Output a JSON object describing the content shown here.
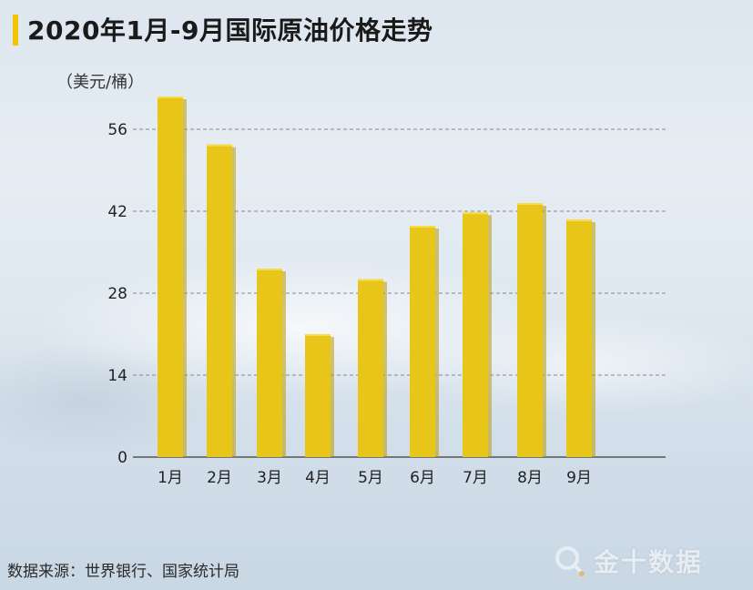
{
  "title": "2020年1月-9月国际原油价格走势",
  "unit_label": "（美元/桶）",
  "source": "数据来源：世界银行、国家统计局",
  "watermark": "金十数据",
  "colors": {
    "bar": "#e8c619",
    "bar_side": "#b89a06",
    "accent": "#f2c500",
    "grid": "#7f8a94",
    "axis": "#555555"
  },
  "chart_data": {
    "type": "bar",
    "title": "2020年1月-9月国际原油价格走势",
    "ylabel": "（美元/桶）",
    "xlabel": "",
    "categories": [
      "1月",
      "2月",
      "3月",
      "4月",
      "5月",
      "6月",
      "7月",
      "8月",
      "9月"
    ],
    "values": [
      61.6,
      53.4,
      32.2,
      21.0,
      30.4,
      39.5,
      41.8,
      43.4,
      40.6
    ],
    "ylim": [
      0,
      56
    ],
    "yticks": [
      0,
      14,
      28,
      42,
      56
    ],
    "grid": true,
    "legend": "none"
  }
}
